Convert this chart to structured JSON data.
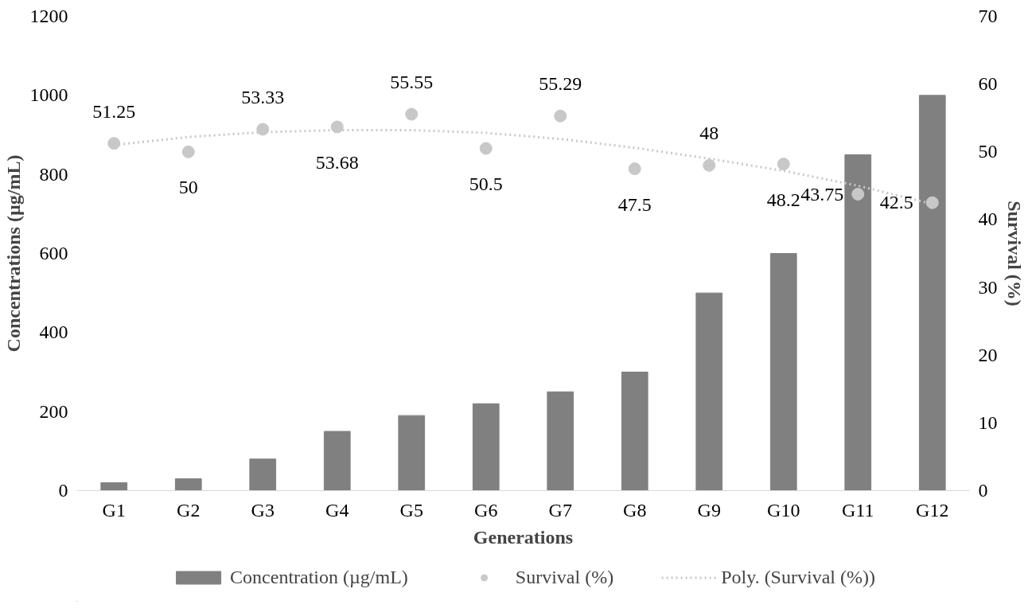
{
  "chart_data": {
    "type": "bar",
    "xlabel": "Generations",
    "ylabel": "Concentrations (µg/mL)",
    "y2label": "Survival (%)",
    "categories": [
      "G1",
      "G2",
      "G3",
      "G4",
      "G5",
      "G6",
      "G7",
      "G8",
      "G9",
      "G10",
      "G11",
      "G12"
    ],
    "series": [
      {
        "name": "Concentration (µg/mL)",
        "color": "#808080",
        "values": [
          20,
          30,
          80,
          150,
          190,
          220,
          250,
          300,
          500,
          600,
          850,
          1000
        ]
      },
      {
        "name": "Survival (%)",
        "type": "scatter",
        "axis": "y2",
        "color": "#c8c8c8",
        "marker": "circle",
        "values": [
          51.25,
          50,
          53.33,
          53.68,
          55.55,
          50.5,
          55.29,
          47.5,
          48,
          48.2,
          43.75,
          42.5
        ],
        "value_labels": [
          "51.25",
          "50",
          "53.33",
          "53.68",
          "55.55",
          "50.5",
          "55.29",
          "47.5",
          "48",
          "48.2",
          "43.75",
          "42.5"
        ]
      },
      {
        "name": "Poly. (Survival (%))",
        "type": "line",
        "axis": "y2",
        "color": "#c8c8c8",
        "line_style": "dotted",
        "values": [
          51.0,
          52.2,
          52.9,
          53.2,
          53.2,
          52.8,
          51.9,
          50.6,
          49.0,
          47.2,
          45.0,
          42.3
        ]
      }
    ],
    "ylim": [
      0,
      1200
    ],
    "yticks": [
      0,
      200,
      400,
      600,
      800,
      1000,
      1200
    ],
    "y2lim": [
      0,
      70
    ],
    "y2ticks": [
      0,
      10,
      20,
      30,
      40,
      50,
      60,
      70
    ],
    "grid": false,
    "legend": "bottom"
  }
}
